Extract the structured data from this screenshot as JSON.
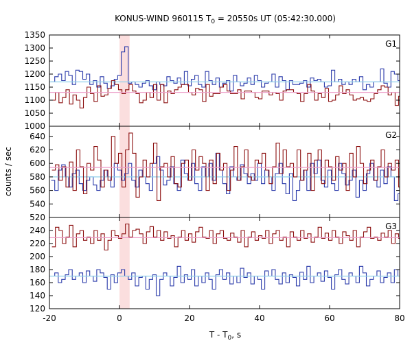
{
  "chart_data": {
    "type": "line",
    "title_prefix": "KONUS-WIND 960115 T",
    "title_sub": "0",
    "title_suffix": " = 20550s UT (05:42:30.000)",
    "xlabel_prefix": "T - T",
    "xlabel_sub": "0",
    "xlabel_suffix": ", s",
    "ylabel": "counts / sec",
    "xlim": [
      -20,
      80
    ],
    "x_ticks": [
      -20,
      0,
      20,
      40,
      60,
      80
    ],
    "highlight_interval": [
      0,
      2.9
    ],
    "colors": {
      "blue": "#2a3aaa",
      "dark_red": "#8b0e0e",
      "light_blue": "#8fd0ec",
      "pink": "#ec9ec8",
      "highlight": "#fbdede"
    },
    "panels": [
      {
        "label": "G1",
        "ylim": [
          1000,
          1350
        ],
        "y_ticks": [
          1000,
          1050,
          1100,
          1150,
          1200,
          1250,
          1300,
          1350
        ],
        "series": [
          {
            "color_key": "blue",
            "background": 1170,
            "background_color_key": "light_blue",
            "x_start": -19.5,
            "bin_width": 1,
            "values": [
              1170,
              1190,
              1200,
              1175,
              1210,
              1195,
              1160,
              1215,
              1210,
              1180,
              1200,
              1160,
              1175,
              1150,
              1190,
              1165,
              1145,
              1155,
              1180,
              1195,
              1285,
              1305,
              1165,
              1170,
              1160,
              1150,
              1165,
              1175,
              1155,
              1140,
              1170,
              1160,
              1155,
              1190,
              1175,
              1165,
              1185,
              1160,
              1210,
              1155,
              1180,
              1195,
              1160,
              1150,
              1210,
              1175,
              1160,
              1185,
              1150,
              1165,
              1175,
              1135,
              1195,
              1170,
              1155,
              1165,
              1185,
              1160,
              1195,
              1175,
              1150,
              1165,
              1170,
              1200,
              1150,
              1190,
              1175,
              1140,
              1175,
              1160,
              1160,
              1165,
              1175,
              1150,
              1185,
              1175,
              1180,
              1170,
              1150,
              1155,
              1215,
              1170,
              1180,
              1160,
              1170,
              1160,
              1180,
              1170,
              1190,
              1140,
              1160,
              1150,
              1170,
              1170,
              1220,
              1165,
              1150,
              1210,
              1200,
              1175
            ]
          },
          {
            "color_key": "dark_red",
            "background": 1130,
            "background_color_key": "pink",
            "x_start": -19.3,
            "bin_width": 1,
            "values": [
              1100,
              1130,
              1090,
              1110,
              1140,
              1085,
              1120,
              1100,
              1070,
              1110,
              1150,
              1125,
              1095,
              1155,
              1115,
              1120,
              1145,
              1175,
              1160,
              1140,
              1125,
              1140,
              1160,
              1135,
              1125,
              1090,
              1100,
              1130,
              1110,
              1160,
              1100,
              1160,
              1090,
              1135,
              1125,
              1140,
              1150,
              1160,
              1160,
              1130,
              1120,
              1145,
              1140,
              1095,
              1160,
              1115,
              1125,
              1125,
              1150,
              1160,
              1135,
              1125,
              1125,
              1140,
              1105,
              1135,
              1135,
              1130,
              1110,
              1105,
              1135,
              1135,
              1120,
              1130,
              1125,
              1100,
              1135,
              1140,
              1140,
              1130,
              1125,
              1095,
              1125,
              1160,
              1135,
              1100,
              1125,
              1110,
              1145,
              1095,
              1100,
              1120,
              1155,
              1125,
              1140,
              1120,
              1100,
              1105,
              1110,
              1100,
              1095,
              1105,
              1125,
              1140,
              1155,
              1150,
              1120,
              1130,
              1080,
              1115
            ]
          }
        ]
      },
      {
        "label": "G2",
        "ylim": [
          520,
          655
        ],
        "y_ticks": [
          520,
          540,
          560,
          580,
          600,
          620,
          640
        ],
        "series": [
          {
            "color_key": "blue",
            "background": 580,
            "background_color_key": "light_blue",
            "x_start": -19.5,
            "bin_width": 1,
            "values": [
              575,
              560,
              590,
              598,
              580,
              565,
              585,
              590,
              570,
              560,
              575,
              580,
              568,
              560,
              575,
              590,
              580,
              565,
              600,
              590,
              575,
              585,
              600,
              575,
              565,
              590,
              580,
              570,
              560,
              600,
              610,
              590,
              568,
              575,
              595,
              570,
              560,
              605,
              585,
              575,
              600,
              570,
              560,
              595,
              580,
              600,
              575,
              615,
              590,
              570,
              555,
              595,
              580,
              575,
              598,
              585,
              570,
              585,
              575,
              600,
              570,
              590,
              580,
              560,
              585,
              600,
              570,
              555,
              585,
              545,
              560,
              575,
              590,
              560,
              600,
              585,
              605,
              575,
              565,
              590,
              570,
              560,
              600,
              585,
              568,
              575,
              590,
              550,
              575,
              560,
              585,
              600,
              575,
              565,
              590,
              570,
              595,
              580,
              545,
              555
            ]
          },
          {
            "color_key": "dark_red",
            "background": 594,
            "background_color_key": "pink",
            "x_start": -19.3,
            "bin_width": 1,
            "values": [
              590,
              598,
              575,
              595,
              565,
              602,
              560,
              620,
              595,
              555,
              600,
              590,
              625,
              605,
              565,
              590,
              575,
              640,
              600,
              615,
              565,
              620,
              645,
              615,
              550,
              580,
              605,
              580,
              600,
              630,
              545,
              595,
              600,
              580,
              610,
              570,
              565,
              600,
              605,
              575,
              620,
              590,
              610,
              600,
              560,
              605,
              570,
              615,
              590,
              600,
              560,
              590,
              625,
              575,
              595,
              620,
              580,
              575,
              605,
              600,
              615,
              590,
              570,
              595,
              630,
              585,
              620,
              595,
              600,
              580,
              620,
              575,
              590,
              615,
              560,
              605,
              620,
              570,
              605,
              595,
              575,
              610,
              590,
              600,
              560,
              615,
              580,
              625,
              600,
              570,
              590,
              605,
              575,
              595,
              620,
              580,
              600,
              590,
              605,
              565
            ]
          }
        ]
      },
      {
        "label": "G3",
        "ylim": [
          120,
          260
        ],
        "y_ticks": [
          120,
          140,
          160,
          180,
          200,
          220,
          240
        ],
        "series": [
          {
            "color_key": "blue",
            "background": 170,
            "background_color_key": "light_blue",
            "x_start": -19.5,
            "bin_width": 1,
            "values": [
              170,
              175,
              160,
              165,
              172,
              180,
              165,
              170,
              175,
              160,
              178,
              170,
              162,
              180,
              175,
              168,
              150,
              172,
              160,
              175,
              180,
              170,
              165,
              175,
              155,
              168,
              170,
              150,
              165,
              172,
              140,
              165,
              175,
              170,
              155,
              168,
              185,
              160,
              172,
              165,
              180,
              155,
              170,
              160,
              175,
              165,
              150,
              172,
              180,
              165,
              175,
              158,
              170,
              160,
              182,
              168,
              175,
              158,
              170,
              165,
              150,
              178,
              170,
              180,
              165,
              158,
              175,
              160,
              172,
              168,
              155,
              176,
              165,
              185,
              160,
              170,
              175,
              162,
              178,
              168,
              150,
              172,
              180,
              165,
              158,
              175,
              170,
              160,
              185,
              175,
              155,
              165,
              170,
              178,
              160,
              168,
              175,
              160,
              180,
              170
            ]
          },
          {
            "color_key": "dark_red",
            "background": 229,
            "background_color_key": "pink",
            "x_start": -19.3,
            "bin_width": 1,
            "values": [
              215,
              245,
              240,
              220,
              230,
              248,
              215,
              235,
              240,
              225,
              230,
              220,
              240,
              225,
              235,
              210,
              225,
              240,
              232,
              228,
              235,
              250,
              230,
              240,
              242,
              235,
              220,
              238,
              246,
              230,
              240,
              225,
              238,
              228,
              232,
              215,
              230,
              240,
              225,
              235,
              222,
              238,
              245,
              230,
              228,
              240,
              220,
              235,
              240,
              228,
              225,
              236,
              230,
              222,
              240,
              215,
              230,
              238,
              225,
              232,
              228,
              240,
              220,
              235,
              240,
              225,
              230,
              215,
              238,
              230,
              225,
              240,
              228,
              235,
              222,
              230,
              245,
              228,
              236,
              225,
              240,
              230,
              220,
              238,
              232,
              225,
              240,
              215,
              230,
              238,
              245,
              228,
              230,
              225,
              236,
              230,
              240,
              220,
              235,
              228
            ]
          }
        ]
      }
    ]
  }
}
